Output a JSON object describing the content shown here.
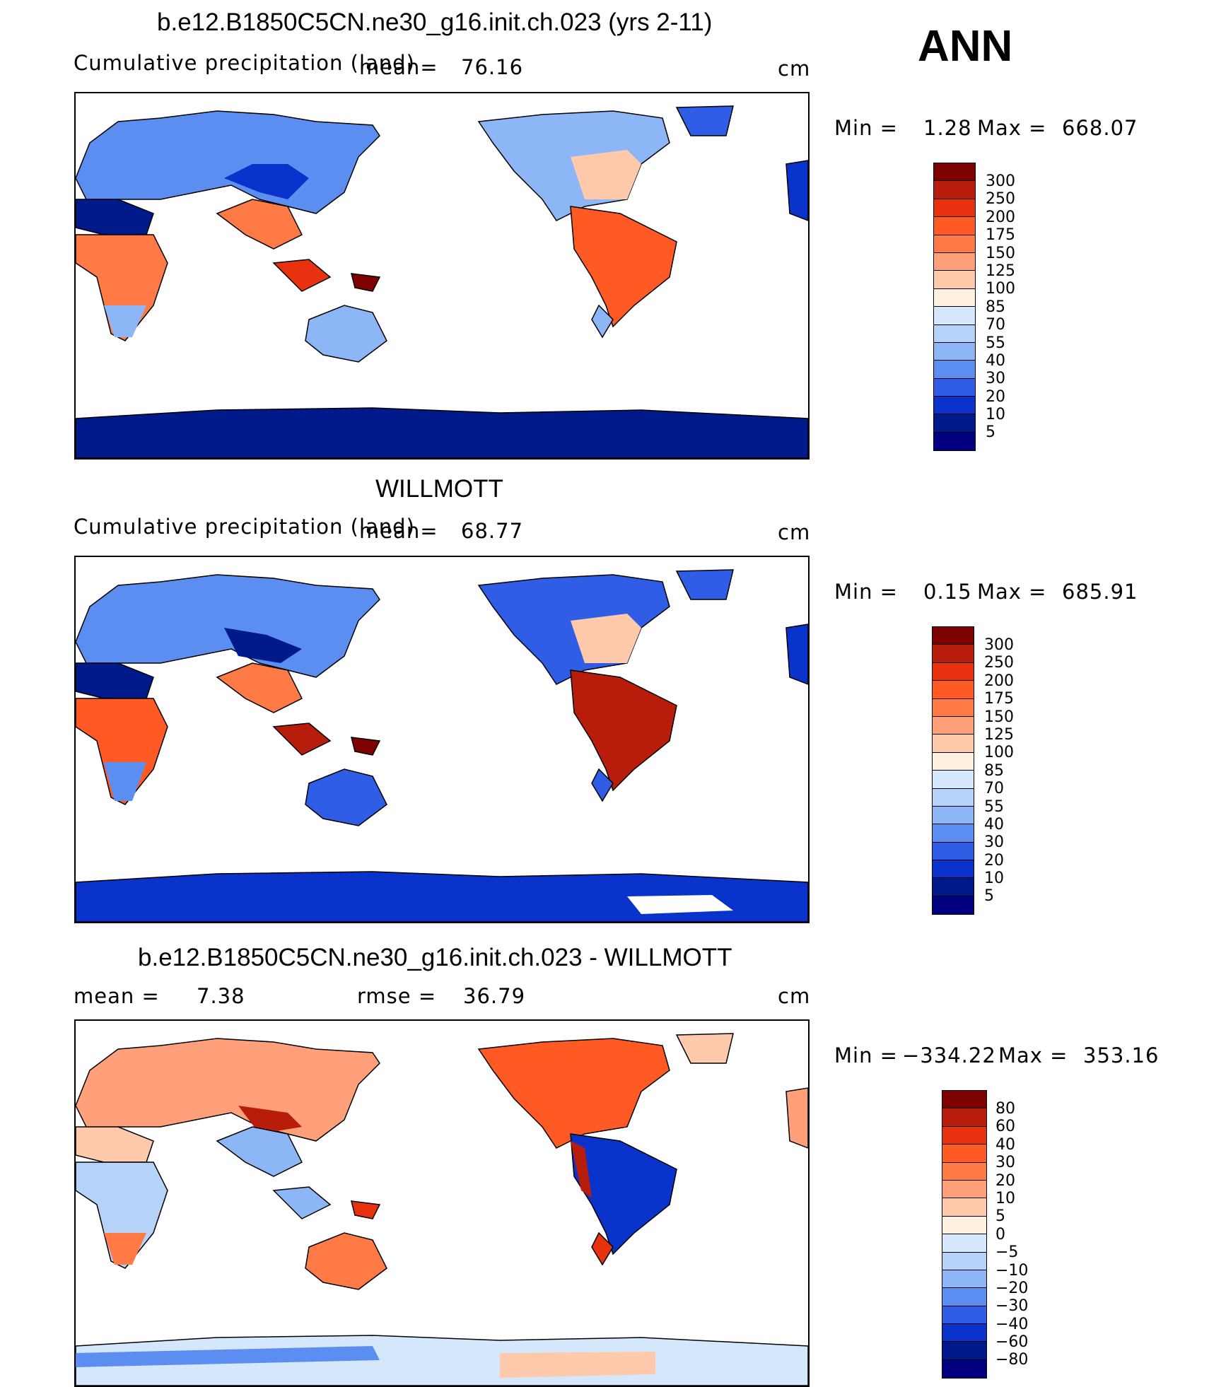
{
  "season": "ANN",
  "panels": [
    {
      "title": "b.e12.B1850C5CN.ne30_g16.init.ch.023 (yrs 2-11)",
      "subtitle": "Cumulative precipitation (land)",
      "mean_label": "mean=",
      "mean_value": "76.16",
      "units": "cm",
      "min_label": "Min =",
      "min_value": "1.28",
      "max_label": "Max =",
      "max_value": "668.07",
      "colorbar_labels": [
        "300",
        "250",
        "200",
        "175",
        "150",
        "125",
        "100",
        "85",
        "70",
        "55",
        "40",
        "30",
        "20",
        "10",
        "5"
      ]
    },
    {
      "title": "WILLMOTT",
      "subtitle": "Cumulative precipitation (land)",
      "mean_label": "mean=",
      "mean_value": "68.77",
      "units": "cm",
      "min_label": "Min =",
      "min_value": "0.15",
      "max_label": "Max =",
      "max_value": "685.91",
      "colorbar_labels": [
        "300",
        "250",
        "200",
        "175",
        "150",
        "125",
        "100",
        "85",
        "70",
        "55",
        "40",
        "30",
        "20",
        "10",
        "5"
      ]
    },
    {
      "title": "b.e12.B1850C5CN.ne30_g16.init.ch.023 - WILLMOTT",
      "mean_label": "mean =",
      "mean_value": "7.38",
      "rmse_label": "rmse =",
      "rmse_value": "36.79",
      "units": "cm",
      "min_label": "Min =",
      "min_value": "−334.22",
      "max_label": "Max =",
      "max_value": "353.16",
      "colorbar_labels": [
        "80",
        "60",
        "40",
        "30",
        "20",
        "10",
        "5",
        "0",
        "−5",
        "−10",
        "−20",
        "−30",
        "−40",
        "−60",
        "−80"
      ]
    }
  ],
  "colors": {
    "precip_scale": [
      "#7f0000",
      "#b81c0a",
      "#e8320f",
      "#ff5a24",
      "#ff7a45",
      "#ffa07a",
      "#ffc9ab",
      "#fff0e0",
      "#d5e8fb",
      "#b5d2f8",
      "#8cb6f6",
      "#5c8df0",
      "#2f5de6",
      "#0a33cc",
      "#001a8c",
      "#000080"
    ],
    "diff_scale": [
      "#7f0000",
      "#b81c0a",
      "#e8320f",
      "#ff5a24",
      "#ff7a45",
      "#ffa07a",
      "#ffc9ab",
      "#fff0e0",
      "#d5e8fb",
      "#b5d2f8",
      "#8cb6f6",
      "#5c8df0",
      "#2f5de6",
      "#0a33cc",
      "#001a8c",
      "#000080"
    ]
  }
}
